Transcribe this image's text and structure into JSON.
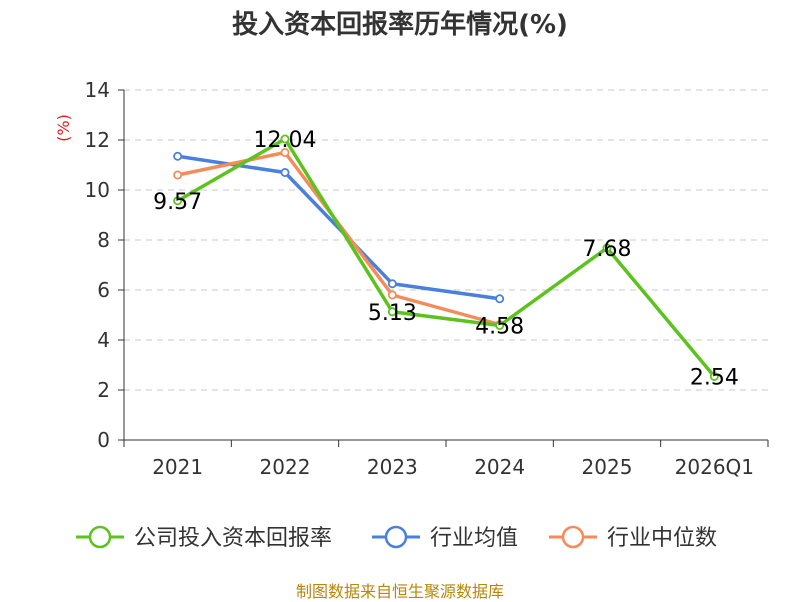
{
  "chart_data": {
    "type": "line",
    "title": "投入资本回报率历年情况(%)",
    "ylabel": "(%)",
    "xlabel": "",
    "ylim": [
      0,
      14
    ],
    "yticks": [
      0,
      2,
      4,
      6,
      8,
      10,
      12,
      14
    ],
    "grid": true,
    "legend_position": "bottom",
    "categories": [
      "2021",
      "2022",
      "2023",
      "2024",
      "2025",
      "2026Q1"
    ],
    "series": [
      {
        "name": "公司投入资本回报率",
        "color": "#5cc21e",
        "values": [
          9.57,
          12.04,
          5.13,
          4.58,
          7.68,
          2.54
        ],
        "labels": [
          "9.57",
          "12.04",
          "5.13",
          "4.58",
          "7.68",
          "2.54"
        ]
      },
      {
        "name": "行业均值",
        "color": "#4a7fdb",
        "values": [
          11.35,
          10.7,
          6.25,
          5.65,
          null,
          null
        ]
      },
      {
        "name": "行业中位数",
        "color": "#f28c5b",
        "values": [
          10.6,
          11.5,
          5.8,
          4.62,
          null,
          null
        ]
      }
    ]
  },
  "footer": {
    "source": "制图数据来自恒生聚源数据库"
  }
}
